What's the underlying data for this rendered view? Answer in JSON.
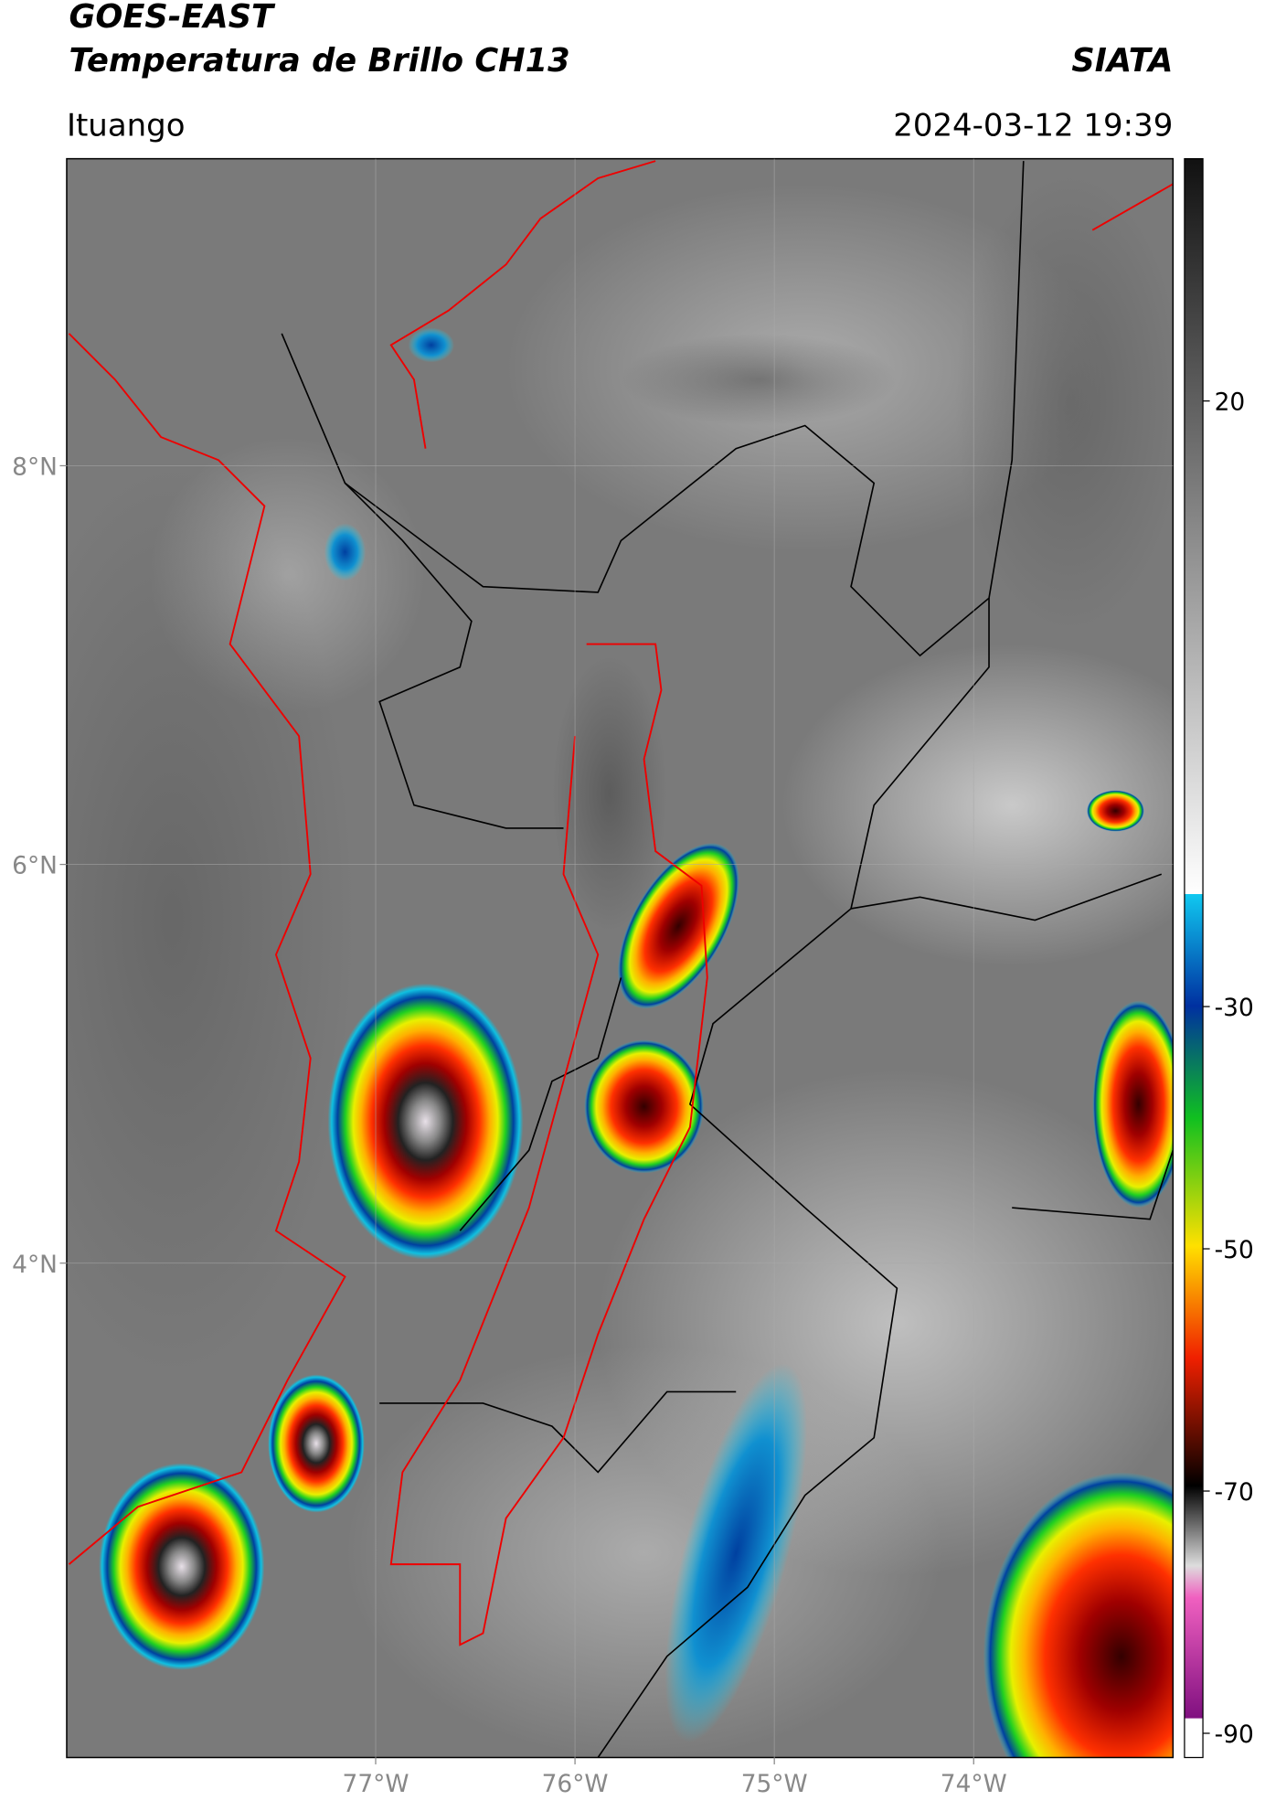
{
  "header": {
    "title": "GOES-EAST",
    "subtitle": "Temperatura de Brillo CH13",
    "organization": "SIATA",
    "location": "Ituango",
    "timestamp": "2024-03-12 19:39"
  },
  "map": {
    "xlim": [
      -78.55,
      -73
    ],
    "ylim": [
      1.52,
      9.54
    ],
    "xticks": [
      {
        "value": -77,
        "label": "77°W"
      },
      {
        "value": -76,
        "label": "76°W"
      },
      {
        "value": -75,
        "label": "75°W"
      },
      {
        "value": -74,
        "label": "74°W"
      }
    ],
    "yticks": [
      {
        "value": 8,
        "label": "8°N"
      },
      {
        "value": 6,
        "label": "6°N"
      },
      {
        "value": 4,
        "label": "4°N"
      }
    ],
    "grid": true
  },
  "colorbar": {
    "lim": [
      -92,
      40
    ],
    "ticks": [
      20,
      -30,
      -50,
      -70,
      -90
    ]
  }
}
